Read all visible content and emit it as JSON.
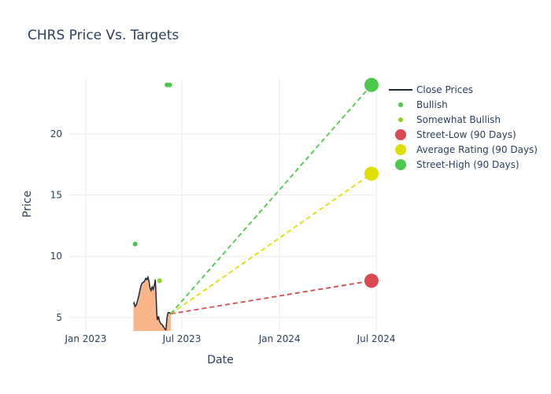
{
  "chart_data": {
    "type": "line",
    "title": "CHRS Price Vs. Targets",
    "xlabel": "Date",
    "ylabel": "Price",
    "x_ticks": [
      {
        "date": "2023-01-01",
        "label": "Jan 2023"
      },
      {
        "date": "2023-07-01",
        "label": "Jul 2023"
      },
      {
        "date": "2024-01-01",
        "label": "Jan 2024"
      },
      {
        "date": "2024-07-01",
        "label": "Jul 2024"
      }
    ],
    "y_ticks": [
      5,
      10,
      15,
      20
    ],
    "xlim": [
      "2022-12-01",
      "2024-07-01"
    ],
    "ylim": [
      3.9,
      24.5
    ],
    "grid": true,
    "legend_position": "right",
    "series": [
      {
        "name": "Close Prices",
        "kind": "line-area",
        "color": "#1f2a36",
        "fill_color": "#f9b48a",
        "points": [
          [
            "2023-04-01",
            6.1
          ],
          [
            "2023-04-02",
            6.2
          ],
          [
            "2023-04-04",
            5.9
          ],
          [
            "2023-04-06",
            6.0
          ],
          [
            "2023-04-08",
            6.3
          ],
          [
            "2023-04-11",
            6.8
          ],
          [
            "2023-04-13",
            7.2
          ],
          [
            "2023-04-15",
            7.6
          ],
          [
            "2023-04-17",
            7.8
          ],
          [
            "2023-04-20",
            7.9
          ],
          [
            "2023-04-22",
            8.0
          ],
          [
            "2023-04-24",
            8.2
          ],
          [
            "2023-04-26",
            8.1
          ],
          [
            "2023-04-28",
            8.3
          ],
          [
            "2023-04-30",
            8.0
          ],
          [
            "2023-05-02",
            7.4
          ],
          [
            "2023-05-04",
            7.2
          ],
          [
            "2023-05-06",
            7.5
          ],
          [
            "2023-05-08",
            7.3
          ],
          [
            "2023-05-10",
            7.6
          ],
          [
            "2023-05-12",
            8.1
          ],
          [
            "2023-05-13",
            7.2
          ],
          [
            "2023-05-15",
            5.2
          ],
          [
            "2023-05-16",
            4.8
          ],
          [
            "2023-05-18",
            5.1
          ],
          [
            "2023-05-20",
            4.7
          ],
          [
            "2023-05-22",
            4.5
          ],
          [
            "2023-05-25",
            4.4
          ],
          [
            "2023-05-28",
            4.2
          ],
          [
            "2023-05-31",
            4.0
          ],
          [
            "2023-06-01",
            4.0
          ],
          [
            "2023-06-03",
            5.0
          ],
          [
            "2023-06-05",
            5.4
          ],
          [
            "2023-06-08",
            5.4
          ],
          [
            "2023-06-10",
            5.3
          ]
        ]
      },
      {
        "name": "Bullish",
        "kind": "markers",
        "color": "#4cc94c",
        "points": [
          [
            "2023-04-04",
            11.0
          ],
          [
            "2023-06-03",
            24.0
          ],
          [
            "2023-06-08",
            24.0
          ]
        ]
      },
      {
        "name": "Somewhat Bullish",
        "kind": "markers",
        "color": "#8fd22a",
        "points": [
          [
            "2023-05-20",
            8.0
          ]
        ]
      },
      {
        "name": "Street-Low (90 Days)",
        "kind": "target",
        "color": "#d84a4f",
        "from": [
          "2023-06-10",
          5.3
        ],
        "to": [
          "2024-06-22",
          8.0
        ]
      },
      {
        "name": "Average Rating (90 Days)",
        "kind": "target",
        "color": "#dfe000",
        "from": [
          "2023-06-10",
          5.3
        ],
        "to": [
          "2024-06-22",
          16.75
        ]
      },
      {
        "name": "Street-High (90 Days)",
        "kind": "target",
        "color": "#4cc94c",
        "from": [
          "2023-06-10",
          5.3
        ],
        "to": [
          "2024-06-22",
          24.0
        ]
      }
    ]
  }
}
